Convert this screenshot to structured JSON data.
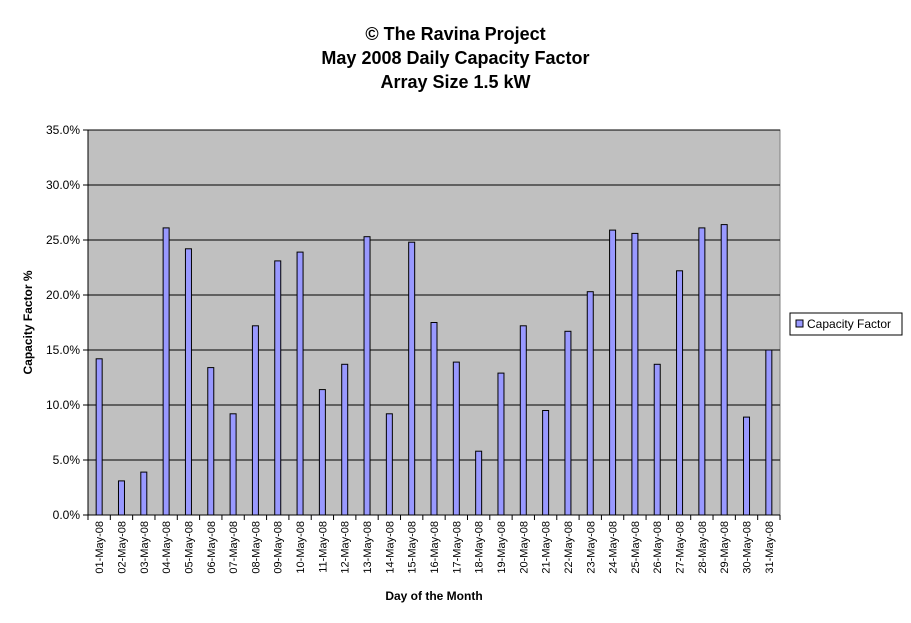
{
  "chart_data": {
    "type": "bar",
    "title_lines": [
      "© The Ravina Project",
      "May 2008 Daily Capacity Factor",
      "Array Size 1.5 kW"
    ],
    "xlabel": "Day of the Month",
    "ylabel": "Capacity Factor %",
    "ylim": [
      0,
      35
    ],
    "y_ticks": [
      0,
      5,
      10,
      15,
      20,
      25,
      30,
      35
    ],
    "y_tick_labels": [
      "0.0%",
      "5.0%",
      "10.0%",
      "15.0%",
      "20.0%",
      "25.0%",
      "30.0%",
      "35.0%"
    ],
    "grid": true,
    "legend_position": "right",
    "categories": [
      "01-May-08",
      "02-May-08",
      "03-May-08",
      "04-May-08",
      "05-May-08",
      "06-May-08",
      "07-May-08",
      "08-May-08",
      "09-May-08",
      "10-May-08",
      "11-May-08",
      "12-May-08",
      "13-May-08",
      "14-May-08",
      "15-May-08",
      "16-May-08",
      "17-May-08",
      "18-May-08",
      "19-May-08",
      "20-May-08",
      "21-May-08",
      "22-May-08",
      "23-May-08",
      "24-May-08",
      "25-May-08",
      "26-May-08",
      "27-May-08",
      "28-May-08",
      "29-May-08",
      "30-May-08",
      "31-May-08"
    ],
    "series": [
      {
        "name": "Capacity Factor",
        "values": [
          14.2,
          3.1,
          3.9,
          26.1,
          24.2,
          13.4,
          9.2,
          17.2,
          23.1,
          23.9,
          11.4,
          13.7,
          25.3,
          9.2,
          24.8,
          17.5,
          13.9,
          5.8,
          12.9,
          17.2,
          9.5,
          16.7,
          20.3,
          25.9,
          25.6,
          13.7,
          22.2,
          26.1,
          26.4,
          8.9,
          15.0
        ]
      }
    ],
    "colors": {
      "bar_fill": "#9999ff",
      "bar_stroke": "#000000",
      "plot_bg": "#c0c0c0",
      "gridline": "#000000"
    }
  }
}
